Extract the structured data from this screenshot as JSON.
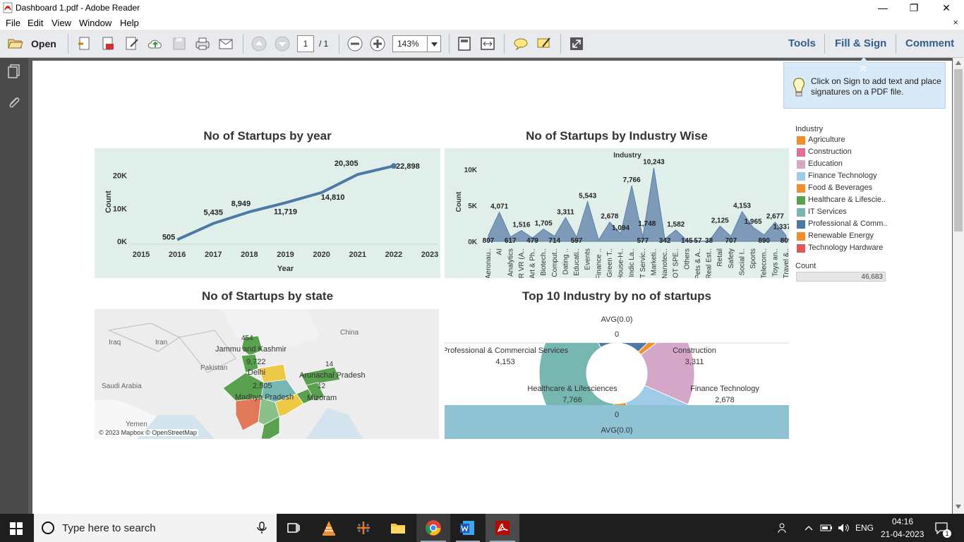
{
  "window": {
    "title": "Dashboard 1.pdf - Adobe Reader",
    "minimize": "—",
    "restore": "❐",
    "close": "✕"
  },
  "menu": {
    "items": [
      "File",
      "Edit",
      "View",
      "Window",
      "Help"
    ],
    "close_doc": "×"
  },
  "toolbar": {
    "open_label": "Open",
    "page_current": "1",
    "page_total": "/ 1",
    "zoom": "143%",
    "tools": "Tools",
    "fill_sign": "Fill & Sign",
    "comment": "Comment"
  },
  "tooltip": {
    "text": "Click on Sign to add text and place signatures on a PDF file."
  },
  "legend": {
    "title": "Industry",
    "items": [
      {
        "label": "Agriculture",
        "color": "#f28e2b"
      },
      {
        "label": "Construction",
        "color": "#e16e9a"
      },
      {
        "label": "Education",
        "color": "#d4a6c8"
      },
      {
        "label": "Finance Technology",
        "color": "#a0cbe8"
      },
      {
        "label": "Food & Beverages",
        "color": "#f28e2b"
      },
      {
        "label": "Healthcare & Lifescie..",
        "color": "#59a14f"
      },
      {
        "label": "IT Services",
        "color": "#76b7b2"
      },
      {
        "label": "Professional & Comm..",
        "color": "#4e79a7"
      },
      {
        "label": "Renewable Energy",
        "color": "#f28e2b"
      },
      {
        "label": "Technology Hardware",
        "color": "#e15759"
      }
    ],
    "count_title": "Count",
    "count_value": "46,683"
  },
  "titles": {
    "year": "No of Startups by  year",
    "industry": "No of Startups by Industry Wise",
    "state": "No of Startups by state",
    "top10": "Top 10 Industry by no of startups"
  },
  "chart_data": [
    {
      "type": "line",
      "title": "No of Startups by  year",
      "xlabel": "Year",
      "ylabel": "Count",
      "x_ticks": [
        "2015",
        "2016",
        "2017",
        "2018",
        "2019",
        "2020",
        "2021",
        "2022",
        "2023"
      ],
      "y_ticks": [
        "0K",
        "10K",
        "20K"
      ],
      "ylim": [
        0,
        24000
      ],
      "x": [
        2016,
        2017,
        2018,
        2019,
        2020,
        2021,
        2022
      ],
      "values": [
        505,
        5435,
        8949,
        11719,
        14810,
        20305,
        22898
      ],
      "labels": [
        "505",
        "5,435",
        "8,949",
        "11,719",
        "14,810",
        "20,305",
        "22,898"
      ],
      "color": "#4e79a7",
      "background": "#e1efeb"
    },
    {
      "type": "area",
      "title": "No of Startups by Industry Wise",
      "header": "Industry",
      "ylabel": "Count",
      "y_ticks": [
        "0K",
        "5K",
        "10K"
      ],
      "ylim": [
        0,
        11000
      ],
      "categories": [
        "Aeronau..",
        "AI",
        "Analytics",
        "AR VR (A..",
        "Art & Ph..",
        "Biotech..",
        "Comput..",
        "Dating ..",
        "Educati..",
        "Events",
        "Finance ..",
        "Green T..",
        "House-H..",
        "Indic La..",
        "IT Servic..",
        "Marketi..",
        "Nanotec..",
        "NOT SPE..",
        "Others",
        "Pets & A..",
        "Real Est..",
        "Retail",
        "Safety",
        "Social I..",
        "Sports",
        "Telecom..",
        "Toys an..",
        "Travel &.."
      ],
      "values": [
        807,
        4071,
        617,
        1516,
        479,
        1705,
        714,
        3311,
        597,
        5543,
        200,
        2678,
        1094,
        7766,
        577,
        10243,
        342,
        1582,
        145,
        57,
        38,
        2125,
        707,
        4153,
        1965,
        890,
        2677,
        809
      ],
      "labels": [
        "807",
        "4,071",
        "617",
        "1,516",
        "479",
        "1,705",
        "714",
        "3,311",
        "597",
        "5,543",
        "",
        "2,678",
        "1,094",
        "7,766",
        "577",
        "10,243",
        "342",
        "1,582",
        "145",
        "57",
        "38",
        "2,125",
        "707",
        "4,153",
        "1,965",
        "890",
        "2,677",
        "809",
        "1,337",
        "1,748"
      ],
      "extra_labels": [
        "1,748",
        "1,337"
      ],
      "color": "#5b7fa8",
      "background": "#e1efeb"
    },
    {
      "type": "pie",
      "title": "Top 10 Industry by no of startups",
      "slices": [
        {
          "name": "Professional & Commercial Services",
          "value": 4153,
          "label": "4,153",
          "color": "#4e79a7"
        },
        {
          "name": "Agriculture",
          "value": 400,
          "label": "",
          "color": "#f28e2b"
        },
        {
          "name": "Construction",
          "value": 3311,
          "label": "3,311",
          "color": "#d4a6c8"
        },
        {
          "name": "Finance Technology",
          "value": 2678,
          "label": "2,678",
          "color": "#a0cbe8"
        },
        {
          "name": "Food & Beverages",
          "value": 1200,
          "label": "",
          "color": "#f28e2b"
        },
        {
          "name": "Healthcare & Lifesciences",
          "value": 7766,
          "label": "7,766",
          "color": "#76b7b2"
        }
      ],
      "top_axis": {
        "label": "AVG(0.0)",
        "value": "0"
      },
      "bottom_axis": {
        "label": "AVG(0.0)",
        "value": "0"
      }
    }
  ],
  "map": {
    "labels": {
      "iraq": "Iraq",
      "iran": "Iran",
      "pakistan": "Pakistan",
      "saudi": "Saudi Arabia",
      "yemen": "Yemen",
      "china": "China",
      "jk": "Jammu and Kashmir",
      "jk_count": "454",
      "delhi_count": "9,722",
      "delhi": "Delhi",
      "mp_count": "2,505",
      "mp": "Madhya Pradesh",
      "ap": "Arunachal Pradesh",
      "ap_count": "14",
      "mizoram": "Mizoram",
      "mizo_count": "12",
      "credit": "© 2023 Mapbox © OpenStreetMap"
    }
  },
  "taskbar": {
    "search_placeholder": "Type here to search",
    "lang": "ENG",
    "time": "04:16",
    "date": "21-04-2023",
    "notif_count": "1"
  }
}
